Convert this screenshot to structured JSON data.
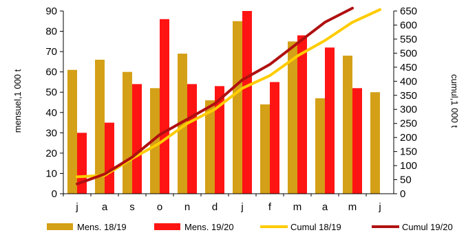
{
  "chart_data": {
    "type": "bar",
    "categories": [
      "j",
      "a",
      "s",
      "o",
      "n",
      "d",
      "j",
      "f",
      "m",
      "a",
      "m",
      "j"
    ],
    "series": [
      {
        "name": "Mens. 18/19",
        "type": "bar",
        "axis": "left",
        "color": "#d4a017",
        "values": [
          61,
          66,
          60,
          52,
          69,
          46,
          85,
          44,
          75,
          47,
          68,
          50
        ]
      },
      {
        "name": "Mens. 19/20",
        "type": "bar",
        "axis": "left",
        "color": "#ff1414",
        "values": [
          30,
          35,
          54,
          86,
          54,
          53,
          90,
          55,
          78,
          72,
          52,
          null
        ]
      },
      {
        "name": "Cumul 18/19",
        "type": "line",
        "axis": "right",
        "color": "#ffcc00",
        "values": [
          60,
          65,
          125,
          180,
          250,
          300,
          375,
          420,
          490,
          545,
          610,
          655
        ]
      },
      {
        "name": "Cumul 19/20",
        "type": "line",
        "axis": "right",
        "color": "#b01010",
        "values": [
          35,
          70,
          130,
          210,
          265,
          320,
          405,
          460,
          535,
          610,
          660,
          null
        ]
      }
    ],
    "ylabel": "mensuel,1 000 t",
    "y2label": "cumul,1 000 t",
    "ylim": [
      0,
      90
    ],
    "yticks": [
      0,
      10,
      20,
      30,
      40,
      50,
      60,
      70,
      80,
      90
    ],
    "y2lim": [
      0,
      650
    ],
    "y2ticks": [
      0,
      50,
      100,
      150,
      200,
      250,
      300,
      350,
      400,
      450,
      500,
      550,
      600,
      650
    ],
    "grid": false,
    "legend_position": "bottom"
  }
}
